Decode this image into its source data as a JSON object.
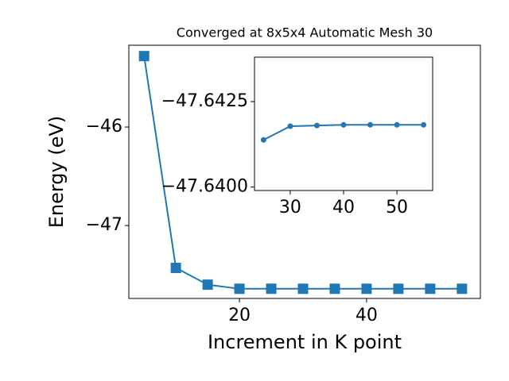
{
  "chart_data": [
    {
      "type": "line",
      "title": "Converged at 8x5x4 Automatic Mesh 30",
      "x_label": "Increment in K point",
      "y_label": "Energy (eV)",
      "marker": "square",
      "series": [
        {
          "color": "#1f77b4",
          "x": [
            5,
            10,
            15,
            20,
            25,
            30,
            35,
            40,
            45,
            50,
            55
          ],
          "values": [
            -45.28,
            -47.43,
            -47.6,
            -47.6418,
            -47.6414,
            -47.6418,
            -47.6418,
            -47.6418,
            -47.6418,
            -47.6418,
            -47.6418
          ]
        }
      ],
      "xlim": [
        2.6,
        57.9
      ],
      "xticks": [
        20,
        40
      ],
      "ylim": [
        -47.74,
        -45.17
      ],
      "yticks": [
        {
          "value": -47,
          "label": "−47"
        },
        {
          "value": -46,
          "label": "−46"
        }
      ]
    },
    {
      "type": "line",
      "marker": "circle",
      "series": [
        {
          "color": "#1f77b4",
          "x": [
            25,
            30,
            35,
            40,
            45,
            50,
            55
          ],
          "values": [
            -47.64138,
            -47.64178,
            -47.6418,
            -47.64182,
            -47.64182,
            -47.64182,
            -47.64182
          ]
        }
      ],
      "xlim": [
        23.3,
        56.7
      ],
      "xticks": [
        30,
        40,
        50
      ],
      "ylim": [
        -47.6399,
        -47.6438
      ],
      "yticks": [
        {
          "value": -47.6425,
          "label": "−47.6425"
        },
        {
          "value": -47.64,
          "label": "−47.6400"
        }
      ]
    }
  ]
}
